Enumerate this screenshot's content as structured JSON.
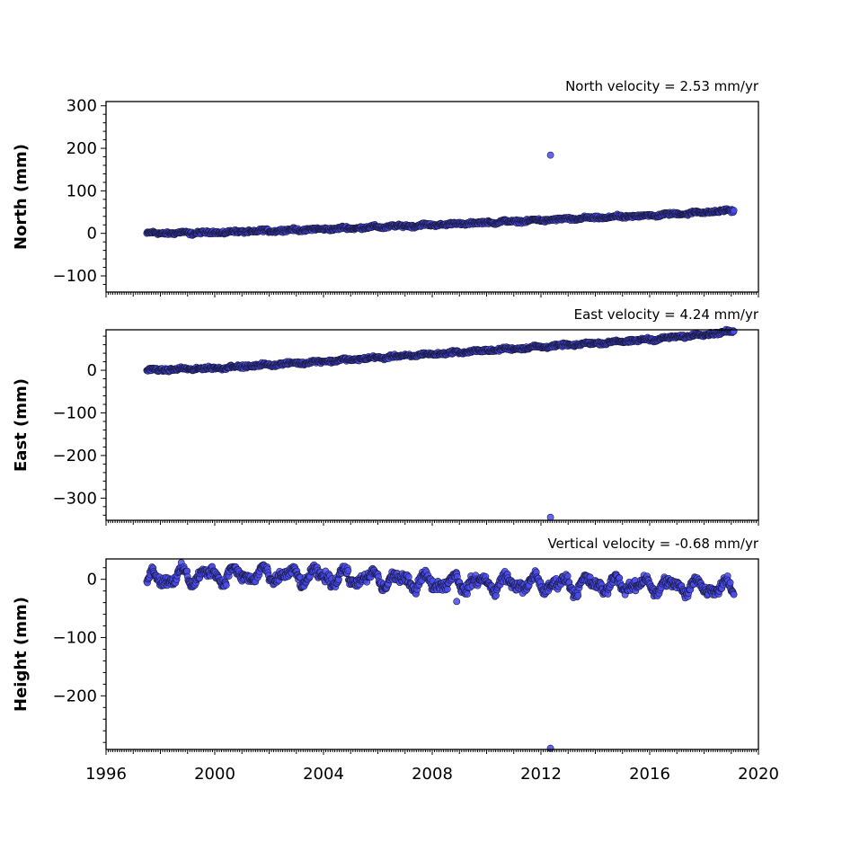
{
  "chart_data": [
    {
      "type": "scatter",
      "title": "North velocity = 2.53 mm/yr",
      "ylabel": "North (mm)",
      "xlim": [
        1996,
        2020
      ],
      "ylim": [
        -138,
        310
      ],
      "yticks": [
        -100,
        0,
        100,
        200,
        300
      ],
      "velocity": 2.53,
      "start": 1997.5,
      "end": 2019.1,
      "noise": 2.5,
      "seasonal": 1.5,
      "outliers": [
        {
          "x": 2012.35,
          "y": 184
        }
      ],
      "series": [
        {
          "points": [
            [
              1997.5,
              0
            ],
            [
              2000,
              2
            ],
            [
              2004,
              10
            ],
            [
              2008,
              20
            ],
            [
              2012,
              31
            ],
            [
              2016,
              42
            ],
            [
              2019.1,
              54
            ]
          ]
        }
      ]
    },
    {
      "type": "scatter",
      "title": "East velocity = 4.24 mm/yr",
      "ylabel": "East (mm)",
      "xlim": [
        1996,
        2020
      ],
      "ylim": [
        -352,
        95
      ],
      "yticks": [
        -300,
        -200,
        -100,
        0
      ],
      "velocity": 4.24,
      "start": 1997.5,
      "end": 2019.1,
      "noise": 2.5,
      "seasonal": 1.5,
      "outliers": [
        {
          "x": 2012.35,
          "y": -345
        }
      ],
      "series": [
        {
          "points": [
            [
              1997.5,
              0
            ],
            [
              2000,
              5
            ],
            [
              2004,
              21
            ],
            [
              2008,
              38
            ],
            [
              2012,
              55
            ],
            [
              2016,
              72
            ],
            [
              2019.1,
              91
            ]
          ]
        }
      ]
    },
    {
      "type": "scatter",
      "title": "Vertical velocity = -0.68 mm/yr",
      "ylabel": "Height (mm)",
      "xlim": [
        1996,
        2020
      ],
      "ylim": [
        -292,
        35
      ],
      "yticks": [
        -200,
        -100,
        0
      ],
      "xticks": [
        1996,
        2000,
        2004,
        2008,
        2012,
        2016,
        2020
      ],
      "velocity": -0.68,
      "start": 1997.5,
      "end": 2019.1,
      "noise": 6,
      "seasonal": 10,
      "outliers": [
        {
          "x": 2012.35,
          "y": -290
        },
        {
          "x": 2008.9,
          "y": -38
        }
      ],
      "series": [
        {
          "points": [
            [
              1997.5,
              0
            ],
            [
              2000,
              8
            ],
            [
              2004,
              5
            ],
            [
              2008,
              -5
            ],
            [
              2012,
              -8
            ],
            [
              2016,
              -10
            ],
            [
              2019.1,
              -15
            ]
          ]
        }
      ]
    }
  ]
}
